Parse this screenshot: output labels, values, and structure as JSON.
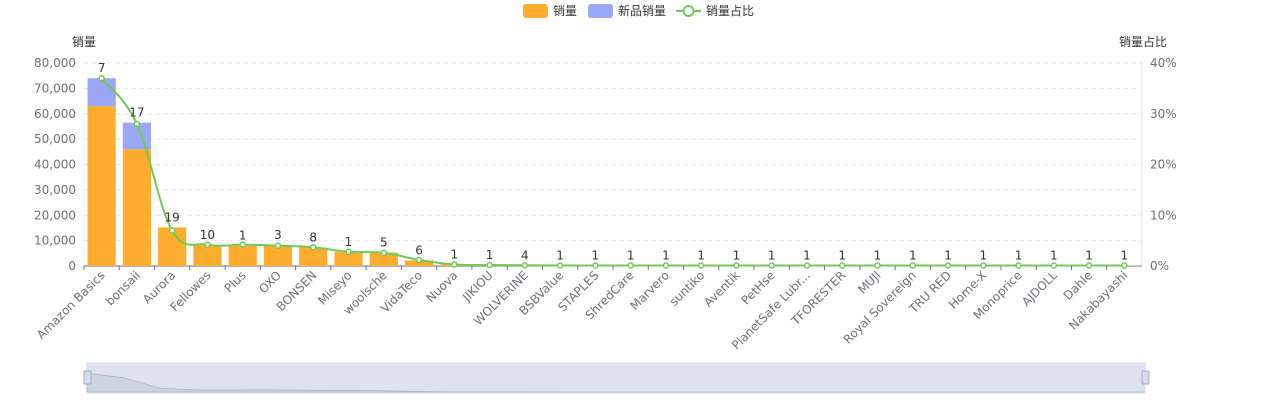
{
  "legend": [
    {
      "name": "销量",
      "color": "#FFAC2F",
      "shape": "rect"
    },
    {
      "name": "新品销量",
      "color": "#9AA7F4",
      "shape": "rect"
    },
    {
      "name": "销量占比",
      "color": "#73C857",
      "shape": "line-circle"
    }
  ],
  "chart_data": {
    "type": "bar",
    "ylabel": "销量",
    "y2label": "销量占比",
    "ylim": [
      0,
      80000
    ],
    "y2lim": [
      0,
      40
    ],
    "y_ticks": [
      "0",
      "10,000",
      "20,000",
      "30,000",
      "40,000",
      "50,000",
      "60,000",
      "70,000",
      "80,000"
    ],
    "y2_ticks": [
      "0%",
      "10%",
      "20%",
      "30%",
      "40%"
    ],
    "grid": true,
    "legend_position": "top-center",
    "stacked": true,
    "categories": [
      "Amazon Basics",
      "bonsaii",
      "Aurora",
      "Fellowes",
      "Plus",
      "OXO",
      "BONSEN",
      "Miseyo",
      "woolsche",
      "VidaTeco",
      "Nuova",
      "JIKIOU",
      "WOLVERINE",
      "BSBValue",
      "STAPLES",
      "ShredCare",
      "Marvero",
      "suntiko",
      "Aventik",
      "PetHse",
      "PlanetSafe Lubr...",
      "TFORESTER",
      "MUJI",
      "Royal Sovereign",
      "TRU RED",
      "Home-X",
      "Monoprice",
      "AJDOLL",
      "Dahle",
      "Nakabayashi"
    ],
    "series": [
      {
        "name": "销量",
        "type": "bar",
        "color": "#FFAC2F",
        "values": [
          63000,
          46000,
          15200,
          8200,
          8000,
          8300,
          7300,
          5600,
          5300,
          2200,
          600,
          400,
          200,
          100,
          100,
          100,
          100,
          100,
          100,
          100,
          100,
          100,
          100,
          100,
          100,
          100,
          100,
          100,
          100,
          100
        ]
      },
      {
        "name": "新品销量",
        "type": "bar",
        "color": "#9AA7F4",
        "values": [
          11000,
          10500,
          0,
          0,
          0,
          0,
          0,
          0,
          0,
          0,
          0,
          0,
          0,
          0,
          0,
          0,
          0,
          0,
          0,
          0,
          0,
          0,
          0,
          0,
          0,
          0,
          0,
          0,
          0,
          0
        ]
      },
      {
        "name": "销量占比",
        "type": "line",
        "color": "#73C857",
        "axis": "right",
        "values": [
          37.0,
          28.0,
          7.0,
          4.2,
          4.2,
          4.0,
          3.7,
          2.8,
          2.6,
          1.2,
          0.3,
          0.2,
          0.15,
          0.1,
          0.1,
          0.1,
          0.1,
          0.1,
          0.1,
          0.1,
          0.1,
          0.1,
          0.1,
          0.1,
          0.1,
          0.1,
          0.1,
          0.1,
          0.1,
          0.1
        ]
      }
    ],
    "bar_labels": [
      "7",
      "17",
      "19",
      "10",
      "1",
      "3",
      "8",
      "1",
      "5",
      "6",
      "1",
      "1",
      "4",
      "1",
      "1",
      "1",
      "1",
      "1",
      "1",
      "1",
      "1",
      "1",
      "1",
      "1",
      "1",
      "1",
      "1",
      "1",
      "1",
      "1"
    ]
  },
  "slider": {
    "range_start_percent": 0,
    "range_end_percent": 100
  }
}
